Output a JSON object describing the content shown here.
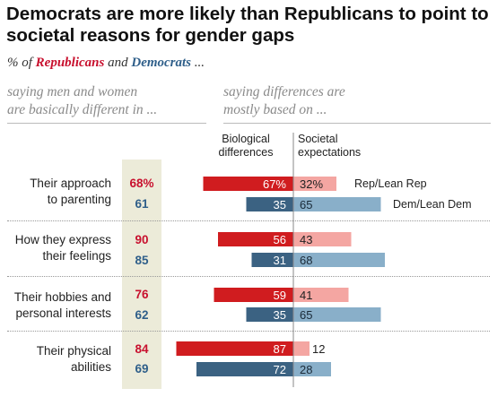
{
  "title": "Democrats are more likely than Republicans to point to societal reasons for gender gaps",
  "subtitle": {
    "prefix": "% of ",
    "republicans": "Republicans",
    "and": " and ",
    "democrats": "Democrats",
    "suffix": " ..."
  },
  "left_header": [
    "saying men and women",
    "are basically different in ..."
  ],
  "right_header": [
    "saying differences are",
    "mostly based on ..."
  ],
  "column_headers": {
    "biological": [
      "Biological",
      "differences"
    ],
    "societal": [
      "Societal",
      "expectations"
    ]
  },
  "legend": {
    "rep": "Rep/Lean Rep",
    "dem": "Dem/Lean Dem"
  },
  "colors": {
    "rep_bio": "#d01c1f",
    "rep_soc": "#f4a6a2",
    "dem_bio": "#3b6282",
    "dem_soc": "#89afc9",
    "rep_text": "#c8102e",
    "dem_text": "#2f5f8a",
    "highlight": "#ecebd9"
  },
  "chart_data": {
    "type": "bar",
    "orientation": "horizontal-diverging",
    "categories": [
      [
        "Their approach",
        "to parenting"
      ],
      [
        "How they express",
        "their feelings"
      ],
      [
        "Their hobbies and",
        "personal interests"
      ],
      [
        "Their physical",
        "abilities"
      ]
    ],
    "basically_different": {
      "rep": [
        "68%",
        "90",
        "76",
        "84"
      ],
      "dem": [
        "61",
        "85",
        "62",
        "69"
      ]
    },
    "series": [
      {
        "name": "Biological differences",
        "rep": [
          67,
          56,
          59,
          87
        ],
        "dem": [
          35,
          31,
          35,
          72
        ],
        "rep_labels": [
          "67%",
          "56",
          "59",
          "87"
        ],
        "dem_labels": [
          "35",
          "31",
          "35",
          "72"
        ]
      },
      {
        "name": "Societal expectations",
        "rep": [
          32,
          43,
          41,
          12
        ],
        "dem": [
          65,
          68,
          65,
          28
        ],
        "rep_labels": [
          "32%",
          "43",
          "41",
          "12"
        ],
        "dem_labels": [
          "65",
          "68",
          "65",
          "28"
        ]
      }
    ]
  }
}
